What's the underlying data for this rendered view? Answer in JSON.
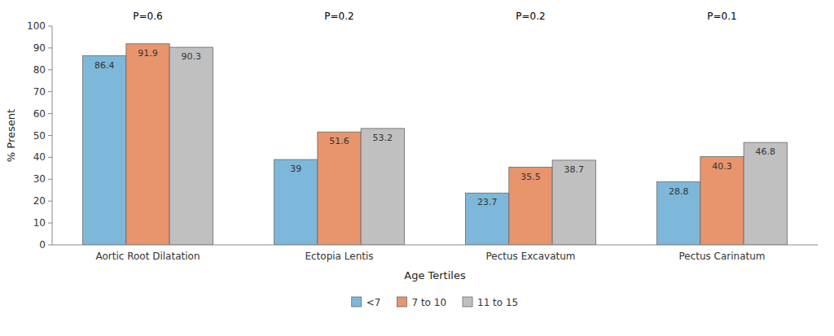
{
  "chart_data": {
    "type": "bar",
    "categories": [
      "Aortic Root Dilatation",
      "Ectopia Lentis",
      "Pectus Excavatum",
      "Pectus Carinatum"
    ],
    "series": [
      {
        "name": "<7",
        "color": "#7DB8DA",
        "values": [
          86.4,
          39,
          23.7,
          28.8
        ]
      },
      {
        "name": "7 to 10",
        "color": "#E8956D",
        "values": [
          91.9,
          51.6,
          35.5,
          40.3
        ]
      },
      {
        "name": "11 to 15",
        "color": "#C0C0C0",
        "values": [
          90.3,
          53.2,
          38.7,
          46.8
        ]
      }
    ],
    "annotations": [
      "P=0.6",
      "P=0.2",
      "P=0.2",
      "P=0.1"
    ],
    "ylabel": "% Present",
    "xlabel": "Age Tertiles",
    "ylim": [
      0,
      100
    ],
    "yticks": [
      0,
      10,
      20,
      30,
      40,
      50,
      60,
      70,
      80,
      90,
      100
    ],
    "grid": false,
    "data_labels": true,
    "legend": "bottom"
  }
}
